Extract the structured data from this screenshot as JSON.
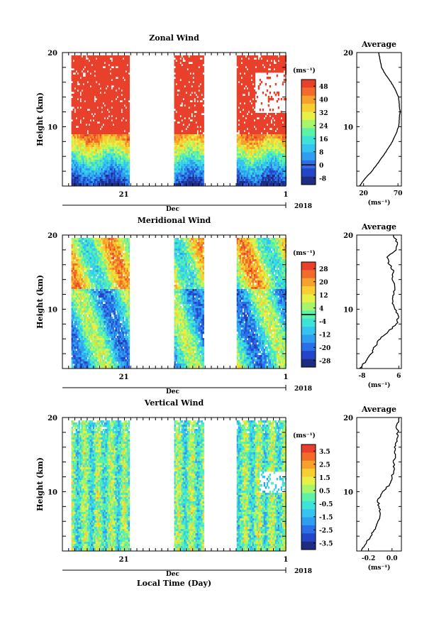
{
  "colors": [
    "#1e2c82",
    "#2445c8",
    "#2a6fe6",
    "#2f9ef0",
    "#35c4f0",
    "#3de3d8",
    "#5ef2a8",
    "#a6f56a",
    "#e6f046",
    "#f7cf33",
    "#f7a12d",
    "#f36a2b",
    "#e8402a"
  ],
  "chart_data": [
    {
      "type": "heatmap",
      "title": "Zonal Wind",
      "ylabel": "Height (km)",
      "yticks": [
        "20",
        "10"
      ],
      "ylim": [
        2,
        20
      ],
      "xticks": [
        "21",
        "1"
      ],
      "month_label": "Dec",
      "year_label": "2018",
      "x_spans": [
        [
          0.04,
          0.3
        ],
        [
          0.5,
          0.63
        ],
        [
          0.78,
          1.0
        ]
      ],
      "colorbar": {
        "unit": "(ms⁻¹)",
        "ticks": [
          "48",
          "40",
          "32",
          "24",
          "16",
          "8",
          "0",
          "-8"
        ],
        "range": [
          -12,
          52
        ],
        "contour_value": 0
      },
      "average": {
        "title": "Average",
        "xlabel": "(ms⁻¹)",
        "xticks": [
          "20",
          "70"
        ],
        "xlim": [
          10,
          75
        ],
        "heights": [
          2,
          3,
          4,
          5,
          6,
          7,
          8,
          9,
          10,
          11,
          12,
          13,
          14,
          15,
          16,
          17,
          18,
          19,
          20
        ],
        "values": [
          14,
          22,
          32,
          40,
          48,
          55,
          62,
          67,
          71,
          72,
          73,
          72,
          71,
          66,
          60,
          52,
          46,
          44,
          42
        ]
      }
    },
    {
      "type": "heatmap",
      "title": "Meridional Wind",
      "ylabel": "Height (km)",
      "yticks": [
        "20",
        "10"
      ],
      "ylim": [
        2,
        20
      ],
      "xticks": [
        "21",
        "1"
      ],
      "month_label": "Dec",
      "year_label": "2018",
      "x_spans": [
        [
          0.04,
          0.3
        ],
        [
          0.5,
          0.63
        ],
        [
          0.78,
          1.0
        ]
      ],
      "colorbar": {
        "unit": "(ms⁻¹)",
        "ticks": [
          "28",
          "20",
          "12",
          "4",
          "-4",
          "-12",
          "-20",
          "-28"
        ],
        "range": [
          -32,
          32
        ],
        "contour_value": 0
      },
      "average": {
        "title": "Average",
        "xlabel": "(ms⁻¹)",
        "xticks": [
          "-8",
          "6"
        ],
        "xlim": [
          -10,
          7
        ],
        "heights": [
          2,
          3,
          4,
          5,
          6,
          7,
          8,
          9,
          10,
          11,
          12,
          13,
          14,
          15,
          16,
          17,
          18,
          19,
          20
        ],
        "values": [
          -9,
          -6.5,
          -4.5,
          -3,
          -1,
          2,
          5,
          6,
          4.5,
          3.8,
          4.2,
          4.5,
          3.5,
          4.0,
          2.5,
          1.5,
          5,
          5.5,
          4
        ]
      }
    },
    {
      "type": "heatmap",
      "title": "Vertical Wind",
      "ylabel": "Height (km)",
      "yticks": [
        "20",
        "10"
      ],
      "ylim": [
        2,
        20
      ],
      "xticks": [
        "21",
        "1"
      ],
      "month_label": "Dec",
      "year_label": "2018",
      "xlabel": "Local Time (Day)",
      "x_spans": [
        [
          0.04,
          0.3
        ],
        [
          0.5,
          0.63
        ],
        [
          0.78,
          1.0
        ]
      ],
      "colorbar": {
        "unit": "(ms⁻¹)",
        "ticks": [
          "3.5",
          "2.5",
          "1.5",
          "0.5",
          "-0.5",
          "-1.5",
          "-2.5",
          "-3.5"
        ],
        "range": [
          -4,
          4
        ]
      },
      "average": {
        "title": "Average",
        "xlabel": "(ms⁻¹)",
        "xticks": [
          "-0.2",
          "0.0"
        ],
        "xlim": [
          -0.3,
          0.08
        ],
        "heights": [
          2,
          3,
          4,
          5,
          6,
          7,
          8,
          9,
          10,
          11,
          12,
          13,
          14,
          15,
          16,
          17,
          18,
          19,
          20
        ],
        "values": [
          -0.26,
          -0.22,
          -0.18,
          -0.14,
          -0.12,
          -0.1,
          -0.11,
          -0.12,
          -0.08,
          -0.02,
          0.0,
          0.02,
          0.01,
          0.03,
          0.02,
          0.04,
          0.05,
          0.04,
          0.06
        ]
      }
    }
  ]
}
